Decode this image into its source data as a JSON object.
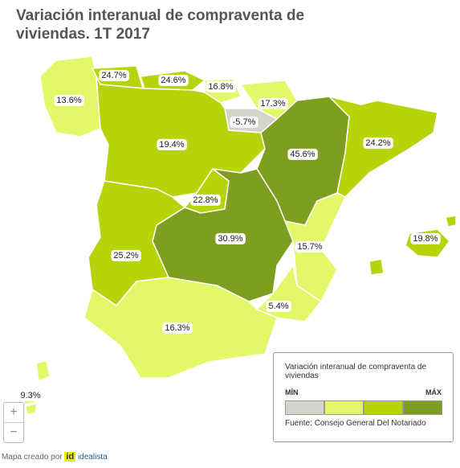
{
  "title": "Variación interanual de compraventa de viviendas. 1T 2017",
  "regions": [
    {
      "value": 13.6,
      "label": "13.6%",
      "color": "#e3f768"
    },
    {
      "value": 24.7,
      "label": "24.7%",
      "color": "#b7d40a"
    },
    {
      "value": 24.6,
      "label": "24.6%",
      "color": "#b7d40a"
    },
    {
      "value": 16.8,
      "label": "16.8%",
      "color": "#e3f768"
    },
    {
      "value": 17.3,
      "label": "17.3%",
      "color": "#e3f768"
    },
    {
      "value": -5.7,
      "label": "-5.7%",
      "color": "#d4d4cc"
    },
    {
      "value": 19.4,
      "label": "19.4%",
      "color": "#b7d40a"
    },
    {
      "value": 45.6,
      "label": "45.6%",
      "color": "#7e9e1f"
    },
    {
      "value": 24.2,
      "label": "24.2%",
      "color": "#b7d40a"
    },
    {
      "value": 22.8,
      "label": "22.8%",
      "color": "#b7d40a"
    },
    {
      "value": 30.9,
      "label": "30.9%",
      "color": "#7e9e1f"
    },
    {
      "value": 25.2,
      "label": "25.2%",
      "color": "#b7d40a"
    },
    {
      "value": 15.7,
      "label": "15.7%",
      "color": "#e3f768"
    },
    {
      "value": 5.4,
      "label": "5.4%",
      "color": "#e3f768"
    },
    {
      "value": 16.3,
      "label": "16.3%",
      "color": "#e3f768"
    },
    {
      "value": 19.8,
      "label": "19.8%",
      "color": "#b7d40a"
    },
    {
      "value": 9.3,
      "label": "9.3%",
      "color": "#e3f768"
    }
  ],
  "legend": {
    "title": "Variación interanual de compraventa de viviendas",
    "min_label": "MÍN",
    "max_label": "MÁX",
    "colors": [
      "#d4d4cc",
      "#e3f768",
      "#b7d40a",
      "#7e9e1f"
    ],
    "source": "Fuente: Consejo General Del Notariado"
  },
  "zoom": {
    "in": "+",
    "out": "−"
  },
  "footer": {
    "text": "Mapa creado por",
    "logo": "id",
    "brand": "idealista"
  }
}
